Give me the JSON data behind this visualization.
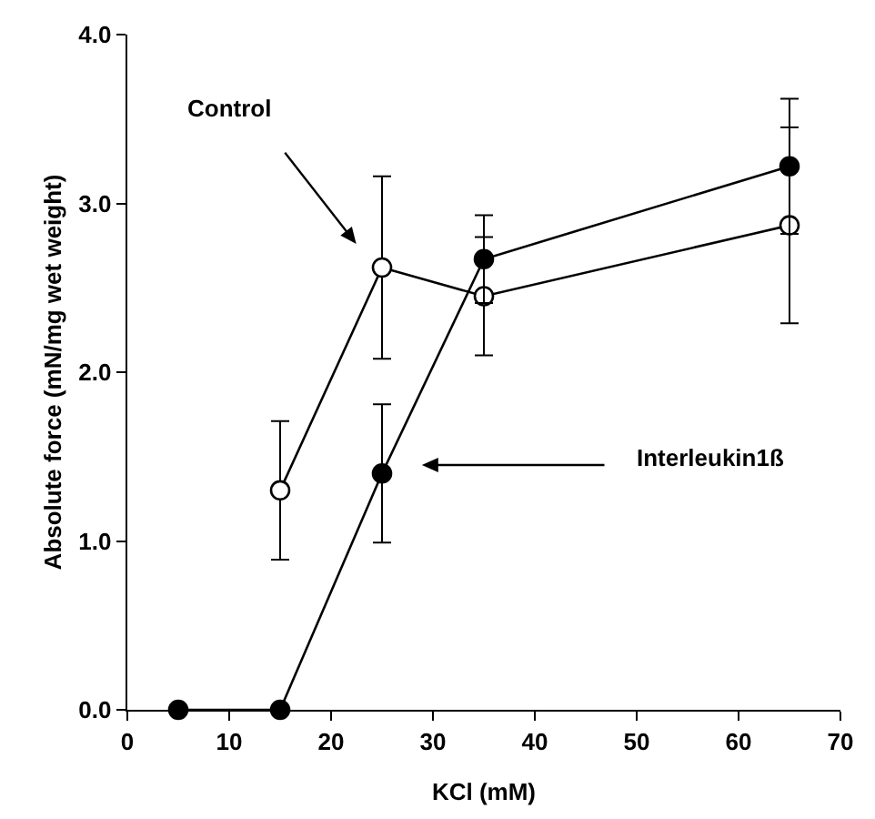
{
  "chart_data": {
    "type": "line",
    "xlabel": "KCl (mM)",
    "ylabel": "Absolute force (mN/mg wet weight)",
    "xlim": [
      0,
      70
    ],
    "xticks": [
      0,
      10,
      20,
      30,
      40,
      50,
      60,
      70
    ],
    "ylim": [
      0,
      4
    ],
    "yticks": [
      {
        "value": 0,
        "label": "0.0"
      },
      {
        "value": 1,
        "label": "1.0"
      },
      {
        "value": 2,
        "label": "2.0"
      },
      {
        "value": 3,
        "label": "3.0"
      },
      {
        "value": 4,
        "label": "4.0"
      }
    ],
    "grid": false,
    "legend": false,
    "marker": "circle",
    "line_style": "solid",
    "series": [
      {
        "color": "#000000",
        "marker": "circle-open",
        "x": [
          15,
          25,
          35,
          65
        ],
        "values": [
          1.3,
          2.62,
          2.45,
          2.87
        ],
        "errors": [
          0.41,
          0.54,
          0.35,
          0.58
        ]
      },
      {
        "color": "#000000",
        "x": [
          5,
          15,
          25,
          35,
          65
        ],
        "values": [
          0,
          0,
          1.4,
          2.67,
          3.22
        ],
        "errors": [
          null,
          null,
          0.41,
          0.26,
          0.4
        ]
      }
    ],
    "annotations": [
      "Control",
      "Interleukin1ß"
    ]
  }
}
